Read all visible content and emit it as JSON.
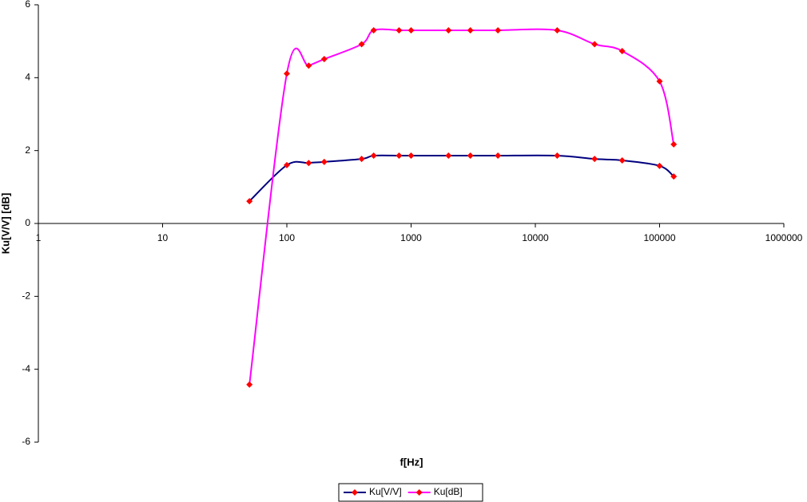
{
  "chart_data": {
    "type": "line",
    "x_label": "f[Hz]",
    "y_label": "Ku[V/V]  [dB]",
    "x_scale": "log",
    "xlim": [
      1,
      1000000
    ],
    "xticks": [
      1,
      10,
      100,
      1000,
      10000,
      100000,
      1000000
    ],
    "ylim": [
      -6,
      6
    ],
    "yticks": [
      -6,
      -4,
      -2,
      0,
      2,
      4,
      6
    ],
    "grid": false,
    "legend": "bottom",
    "marker_color": "#ff0000",
    "x": [
      50,
      100,
      150,
      200,
      400,
      500,
      800,
      1000,
      2000,
      3000,
      5000,
      15000,
      30000,
      50000,
      100000,
      130000
    ],
    "series": [
      {
        "name": "Ku[V/V]",
        "color": "#000080",
        "values": [
          0.61,
          1.6,
          1.66,
          1.69,
          1.77,
          1.86,
          1.86,
          1.86,
          1.86,
          1.86,
          1.86,
          1.86,
          1.77,
          1.73,
          1.58,
          1.29
        ]
      },
      {
        "name": "Ku[dB]",
        "color": "#ff00ff",
        "values": [
          -4.42,
          4.11,
          4.33,
          4.51,
          4.92,
          5.3,
          5.3,
          5.3,
          5.3,
          5.3,
          5.3,
          5.3,
          4.92,
          4.73,
          3.9,
          2.17
        ]
      }
    ]
  }
}
